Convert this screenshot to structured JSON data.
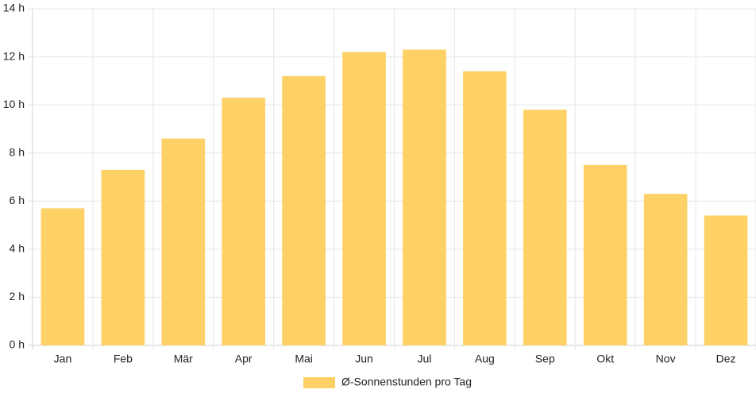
{
  "chart_data": {
    "type": "bar",
    "categories": [
      "Jan",
      "Feb",
      "Mär",
      "Apr",
      "Mai",
      "Jun",
      "Jul",
      "Aug",
      "Sep",
      "Okt",
      "Nov",
      "Dez"
    ],
    "series": [
      {
        "name": "Ø-Sonnenstunden pro Tag",
        "values": [
          5.7,
          7.3,
          8.6,
          10.3,
          11.2,
          12.2,
          12.3,
          11.4,
          9.8,
          7.5,
          6.3,
          5.4
        ]
      }
    ],
    "ylim": [
      0,
      14
    ],
    "yticks": [
      0,
      2,
      4,
      6,
      8,
      10,
      12,
      14
    ],
    "ytick_labels": [
      "0 h",
      "2 h",
      "4 h",
      "6 h",
      "8 h",
      "10 h",
      "12 h",
      "14 h"
    ],
    "grid": true,
    "legend_position": "bottom-center",
    "colors": {
      "bar": "#fdd166",
      "grid": "#e6e6e6",
      "axis": "#d0d0d0",
      "text": "#222222"
    }
  }
}
